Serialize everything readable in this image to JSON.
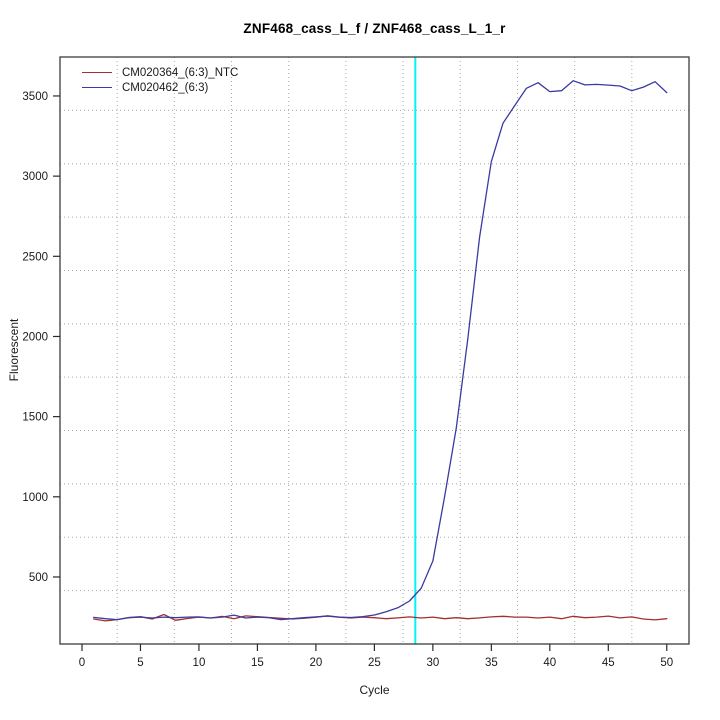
{
  "chart_data": {
    "type": "line",
    "title": "ZNF468_cass_L_f / ZNF468_cass_L_1_r",
    "xlabel": "Cycle",
    "ylabel": "Fluorescent",
    "x_ticks": [
      0,
      5,
      10,
      15,
      20,
      25,
      30,
      35,
      40,
      45,
      50
    ],
    "y_ticks": [
      500,
      1000,
      1500,
      2000,
      2500,
      3000,
      3500
    ],
    "xlim": [
      -1.88,
      51.9
    ],
    "ylim": [
      82,
      3743
    ],
    "grid": {
      "divisions": 11,
      "style": "dotted",
      "color": "#a9a9a9"
    },
    "threshold_line": {
      "x": 28.5,
      "color": "#00f5f5",
      "orientation": "vertical"
    },
    "legend_position": "top-left",
    "cycles": [
      1,
      2,
      3,
      4,
      5,
      6,
      7,
      8,
      9,
      10,
      11,
      12,
      13,
      14,
      15,
      16,
      17,
      18,
      19,
      20,
      21,
      22,
      23,
      24,
      25,
      26,
      27,
      28,
      29,
      30,
      31,
      32,
      33,
      34,
      35,
      36,
      37,
      38,
      39,
      40,
      41,
      42,
      43,
      44,
      45,
      46,
      47,
      48,
      49,
      50
    ],
    "series": [
      {
        "name": "CM020364_(6:3)_NTC",
        "color": "#a13030",
        "values": [
          238,
          226,
          234,
          247,
          252,
          238,
          266,
          230,
          241,
          250,
          244,
          254,
          239,
          257,
          252,
          247,
          242,
          238,
          243,
          249,
          258,
          249,
          244,
          250,
          246,
          240,
          245,
          251,
          244,
          250,
          240,
          246,
          240,
          245,
          251,
          255,
          250,
          250,
          244,
          250,
          240,
          255,
          246,
          250,
          256,
          245,
          251,
          238,
          232,
          240
        ]
      },
      {
        "name": "CM020462_(6:3)",
        "color": "#3a3aa2",
        "values": [
          248,
          240,
          234,
          246,
          250,
          244,
          250,
          246,
          250,
          251,
          244,
          250,
          262,
          244,
          250,
          246,
          234,
          240,
          246,
          251,
          256,
          250,
          247,
          253,
          263,
          283,
          308,
          350,
          430,
          600,
          1000,
          1430,
          1990,
          2620,
          3090,
          3330,
          3440,
          3548,
          3583,
          3527,
          3533,
          3595,
          3569,
          3572,
          3568,
          3562,
          3533,
          3555,
          3589,
          3521
        ]
      }
    ],
    "axis_color": "#3c3c3c",
    "tick_label_color": "#1a1a1a"
  }
}
